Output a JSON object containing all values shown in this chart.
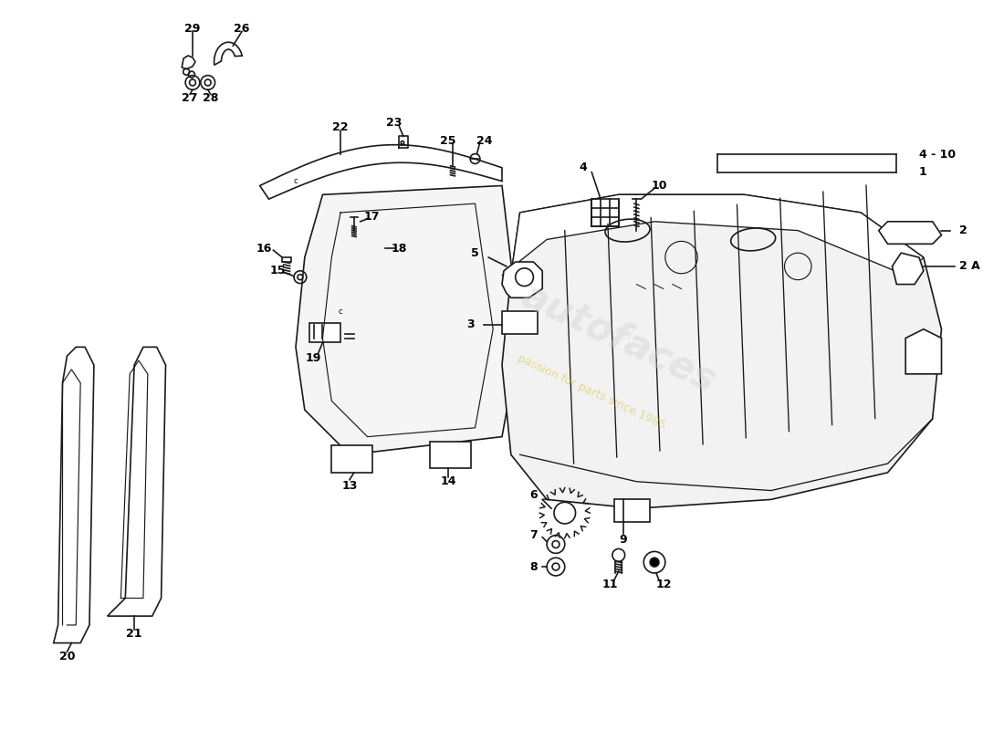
{
  "bg": "#ffffff",
  "lc": "#1a1a1a",
  "lw": 1.2,
  "fs": 9,
  "xlim": [
    0,
    110
  ],
  "ylim": [
    0,
    80
  ],
  "wm1": "autofaces",
  "wm2": "passion for parts since 1985"
}
